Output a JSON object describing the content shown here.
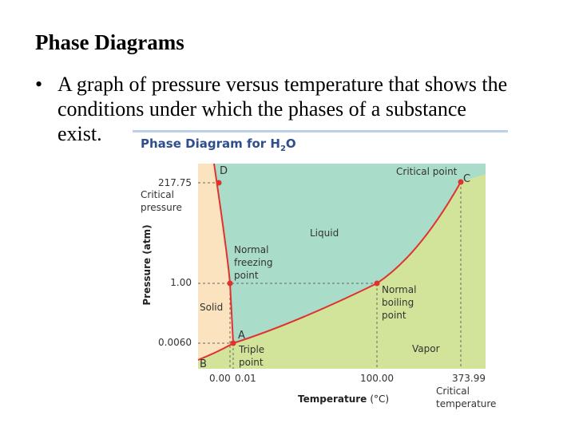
{
  "slide": {
    "title": "Phase Diagrams",
    "bullet": {
      "symbol": "•",
      "lines": [
        "A graph of pressure versus temperature that shows the",
        "conditions under which the phases of a substance",
        "exist."
      ]
    }
  },
  "diagram": {
    "header": {
      "prefix": "Phase Diagram for H",
      "subscript": "2",
      "suffix": "O"
    },
    "y_axis_label": "Pressure (atm)",
    "x_axis_label": "Temperature",
    "x_axis_unit": "(°C)",
    "y_ticks": [
      "217.75",
      "1.00",
      "0.0060"
    ],
    "y_annotation": [
      "Critical",
      "pressure"
    ],
    "x_ticks": [
      "0.00",
      "0.01",
      "100.00",
      "373.99"
    ],
    "x_annotation": [
      "Critical",
      "temperature"
    ],
    "regions": {
      "solid": "Solid",
      "liquid": "Liquid",
      "vapor": "Vapor"
    },
    "points": {
      "D": "D",
      "A": "A",
      "B": "B",
      "C": "C",
      "critical_point": "Critical point",
      "freezing": [
        "Normal",
        "freezing",
        "point"
      ],
      "boiling": [
        "Normal",
        "boiling",
        "point"
      ],
      "triple": [
        "Triple",
        "point"
      ]
    },
    "colors": {
      "solid": "#fbe3c0",
      "liquid": "#a9dcc9",
      "vapor": "#d2e39a",
      "curve": "#e0322f",
      "header_bar": "#bcd0ea",
      "header_text": "#2e4e8c"
    }
  }
}
